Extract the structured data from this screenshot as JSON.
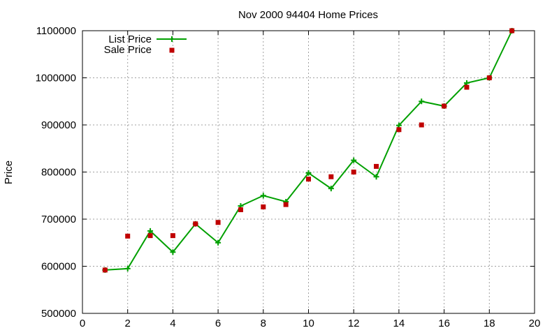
{
  "chart_data": {
    "type": "line",
    "title": "Nov 2000 94404 Home Prices",
    "xlabel": "",
    "ylabel": "Price",
    "xlim": [
      0,
      20
    ],
    "ylim": [
      500000,
      1100000
    ],
    "xticks": [
      "0",
      "2",
      "4",
      "6",
      "8",
      "10",
      "12",
      "14",
      "16",
      "18",
      "20"
    ],
    "yticks": [
      "500000",
      "600000",
      "700000",
      "800000",
      "900000",
      "1000000",
      "1100000"
    ],
    "grid": true,
    "legend_position": "top-left",
    "series": [
      {
        "name": "List Price",
        "style": "line-with-plus-markers",
        "color": "#00a000",
        "x": [
          1,
          2,
          3,
          4,
          5,
          6,
          7,
          8,
          9,
          10,
          11,
          12,
          13,
          14,
          15,
          16,
          17,
          18,
          19
        ],
        "y": [
          592000,
          595000,
          675000,
          630000,
          690000,
          650000,
          728000,
          750000,
          737000,
          798000,
          765000,
          825000,
          790000,
          899000,
          950000,
          940000,
          989000,
          1000000,
          1100000
        ]
      },
      {
        "name": "Sale Price",
        "style": "square-markers",
        "color": "#c00000",
        "x": [
          1,
          2,
          3,
          4,
          5,
          6,
          7,
          8,
          9,
          10,
          11,
          12,
          13,
          14,
          15,
          16,
          17,
          18,
          19
        ],
        "y": [
          592000,
          664000,
          665000,
          665000,
          690000,
          693000,
          720000,
          726000,
          731000,
          785000,
          790000,
          800000,
          812000,
          890000,
          900000,
          940000,
          980000,
          1000000,
          1100000
        ]
      }
    ]
  }
}
